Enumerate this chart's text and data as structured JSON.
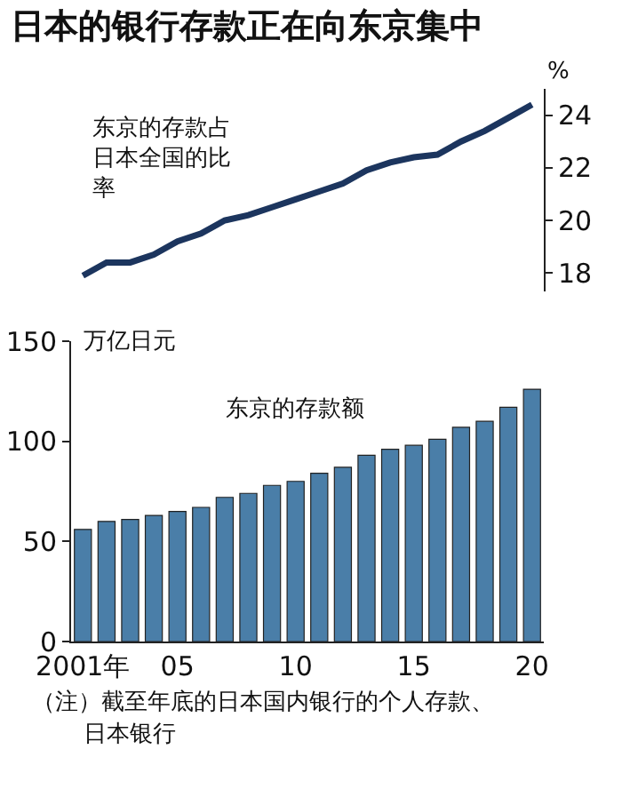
{
  "chart_data": [
    {
      "type": "line",
      "title": "日本的银行存款正在向东京集中",
      "ylabel": "%",
      "categories": [
        null,
        null,
        null,
        null,
        null,
        null,
        null,
        null,
        null,
        null,
        null,
        null,
        null,
        null,
        null,
        null,
        null,
        null,
        null,
        null
      ],
      "series": [
        {
          "color": "#1c355e",
          "values": [
            17.9,
            18.4,
            18.4,
            18.7,
            19.2,
            19.5,
            20.0,
            20.2,
            20.5,
            20.8,
            21.1,
            21.4,
            21.9,
            22.2,
            22.4,
            22.5,
            23.0,
            23.4,
            23.9,
            24.4
          ]
        }
      ],
      "ylim": [
        17.3,
        25
      ],
      "yticks": [
        18,
        20,
        22,
        24
      ],
      "tick_labels": "y",
      "marker": "none",
      "annotations": [
        "东京的存款占日本全国的比率"
      ]
    },
    {
      "type": "bar",
      "ylabel": "万亿日元",
      "categories": [
        "2001年",
        null,
        null,
        null,
        "05",
        null,
        null,
        null,
        null,
        "10",
        null,
        null,
        null,
        null,
        "15",
        null,
        null,
        null,
        null,
        "20"
      ],
      "series": [
        {
          "color": "#4a7ea8",
          "values": [
            56,
            60,
            61,
            63,
            65,
            67,
            72,
            74,
            78,
            80,
            84,
            87,
            93,
            96,
            98,
            101,
            107,
            110,
            117,
            126
          ]
        }
      ],
      "ylim": [
        0,
        150
      ],
      "yticks": [
        0,
        50,
        100,
        150
      ],
      "annotations": [
        "东京的存款额",
        "（注）截至年底的日本国内银行的个人存款、日本银行"
      ]
    }
  ]
}
